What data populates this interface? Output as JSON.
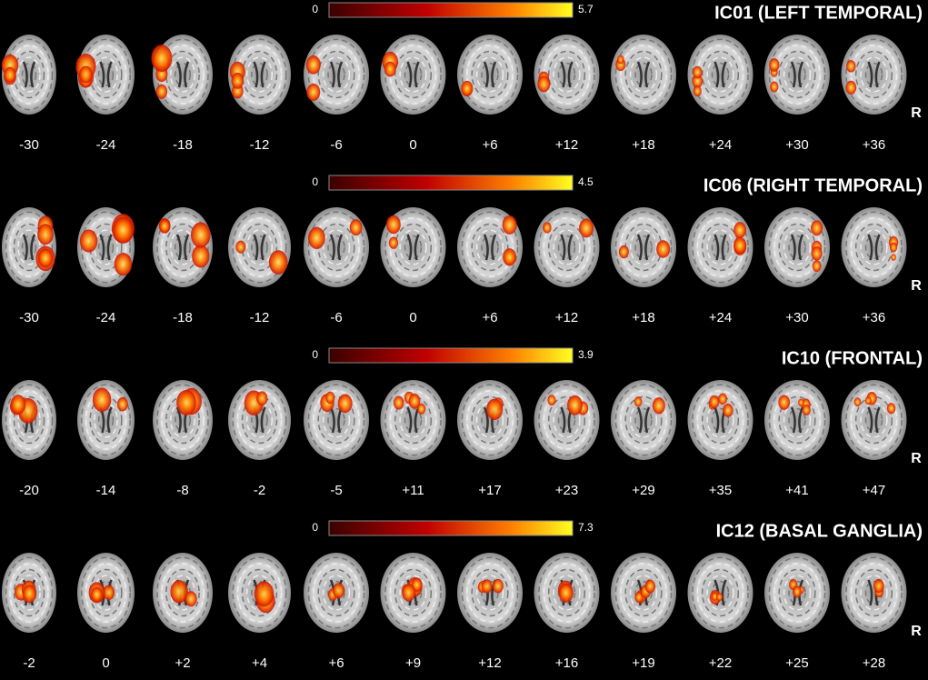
{
  "panels": [
    {
      "title": "IC01 (LEFT TEMPORAL)",
      "colorbar": {
        "min": 0,
        "max": 5.7
      },
      "slices": [
        "-30",
        "-24",
        "-18",
        "-12",
        "-6",
        "0",
        "+6",
        "+12",
        "+18",
        "+24",
        "+30",
        "+36"
      ],
      "orientation": "R"
    },
    {
      "title": "IC06 (RIGHT TEMPORAL)",
      "colorbar": {
        "min": 0,
        "max": 4.5
      },
      "slices": [
        "-30",
        "-24",
        "-18",
        "-12",
        "-6",
        "0",
        "+6",
        "+12",
        "+18",
        "+24",
        "+30",
        "+36"
      ],
      "orientation": "R"
    },
    {
      "title": "IC10 (FRONTAL)",
      "colorbar": {
        "min": 0,
        "max": 3.9
      },
      "slices": [
        "-20",
        "-14",
        "-8",
        "-2",
        "-5",
        "+11",
        "+17",
        "+23",
        "+29",
        "+35",
        "+41",
        "+47"
      ],
      "orientation": "R"
    },
    {
      "title": "IC12 (BASAL GANGLIA)",
      "colorbar": {
        "min": 0,
        "max": 7.3
      },
      "slices": [
        "-2",
        "0",
        "+2",
        "+4",
        "+6",
        "+9",
        "+12",
        "+16",
        "+19",
        "+22",
        "+25",
        "+28"
      ],
      "orientation": "R"
    }
  ]
}
